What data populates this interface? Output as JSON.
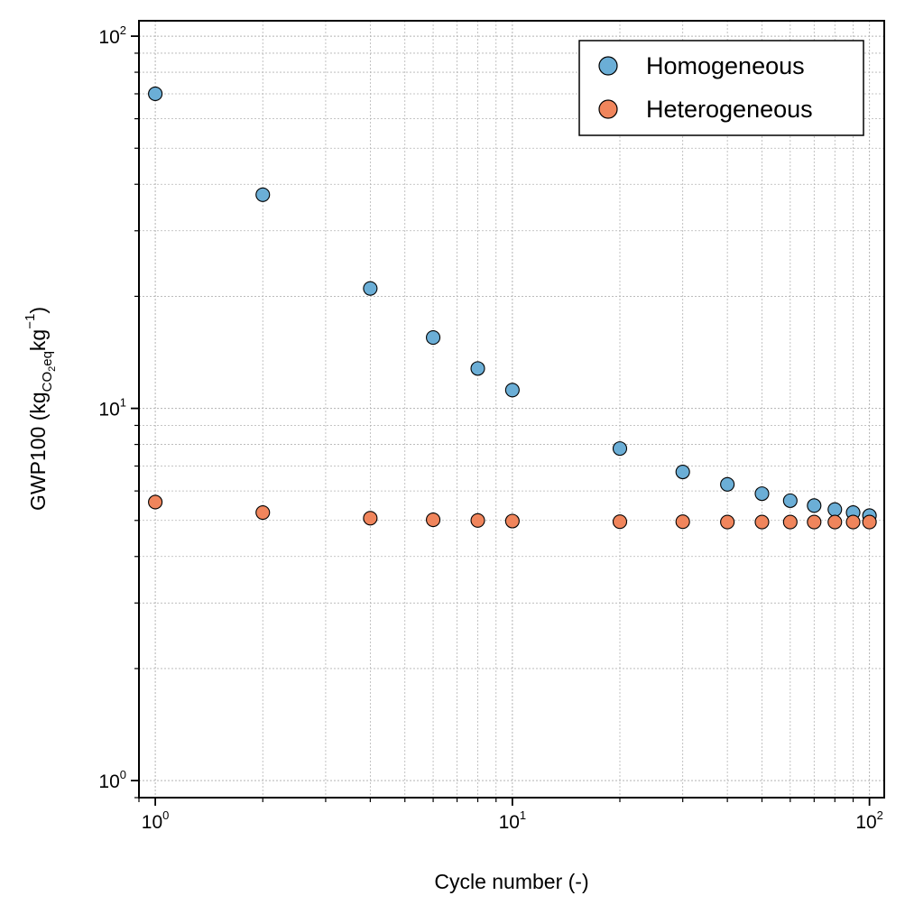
{
  "chart_data": {
    "type": "scatter",
    "xlabel": "Cycle number (-)",
    "ylabel": {
      "main": "GWP100 (kg",
      "sub_main": "CO",
      "sub_sub": "2",
      "sub_tail": "eq",
      "mid": "kg",
      "sup": "−1",
      "close": ")"
    },
    "xscale": "log",
    "yscale": "log",
    "xlim": [
      0.9,
      110
    ],
    "ylim": [
      0.9,
      110
    ],
    "grid": true,
    "legend_position": "top-right",
    "x_ticks": [
      {
        "base": "10",
        "exp": "0",
        "value": 1
      },
      {
        "base": "10",
        "exp": "1",
        "value": 10
      },
      {
        "base": "10",
        "exp": "2",
        "value": 100
      }
    ],
    "y_ticks": [
      {
        "base": "10",
        "exp": "0",
        "value": 1
      },
      {
        "base": "10",
        "exp": "1",
        "value": 10
      },
      {
        "base": "10",
        "exp": "2",
        "value": 100
      }
    ],
    "series": [
      {
        "name": "Homogeneous",
        "color": "#6baed6",
        "x": [
          1,
          2,
          4,
          6,
          8,
          10,
          20,
          30,
          40,
          50,
          60,
          70,
          80,
          90,
          100
        ],
        "y": [
          70.0,
          37.5,
          21.0,
          15.5,
          12.8,
          11.2,
          7.8,
          6.75,
          6.25,
          5.9,
          5.65,
          5.48,
          5.35,
          5.25,
          5.15
        ]
      },
      {
        "name": "Heterogeneous",
        "color": "#f0855c",
        "x": [
          1,
          2,
          4,
          6,
          8,
          10,
          20,
          30,
          40,
          50,
          60,
          70,
          80,
          90,
          100
        ],
        "y": [
          5.6,
          5.25,
          5.07,
          5.02,
          5.0,
          4.98,
          4.96,
          4.96,
          4.95,
          4.95,
          4.95,
          4.95,
          4.95,
          4.95,
          4.95
        ]
      }
    ]
  }
}
